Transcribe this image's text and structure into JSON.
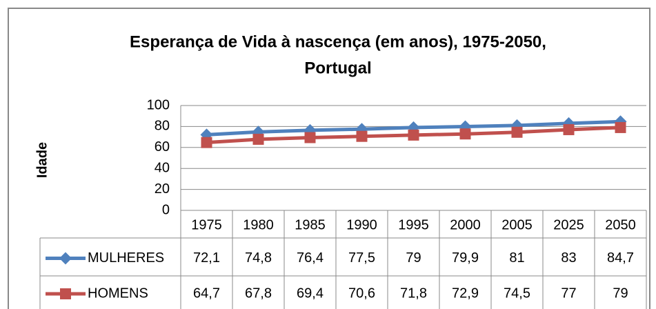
{
  "chart_data": {
    "type": "line",
    "title": [
      "Esperança de Vida à nascença (em anos), 1975-2050,",
      "Portugal"
    ],
    "y_label": "Idade",
    "categories": [
      "1975",
      "1980",
      "1985",
      "1990",
      "1995",
      "2000",
      "2005",
      "2025",
      "2050"
    ],
    "series": [
      {
        "name": "MULHERES",
        "color": "#4f81bd",
        "marker": "diamond",
        "values": [
          72.1,
          74.8,
          76.4,
          77.5,
          79,
          79.9,
          81,
          83,
          84.7
        ],
        "value_labels": [
          "72,1",
          "74,8",
          "76,4",
          "77,5",
          "79",
          "79,9",
          "81",
          "83",
          "84,7"
        ]
      },
      {
        "name": "HOMENS",
        "color": "#c0504d",
        "marker": "square",
        "values": [
          64.7,
          67.8,
          69.4,
          70.6,
          71.8,
          72.9,
          74.5,
          77,
          79
        ],
        "value_labels": [
          "64,7",
          "67,8",
          "69,4",
          "70,6",
          "71,8",
          "72,9",
          "74,5",
          "77",
          "79"
        ]
      }
    ],
    "ylim": [
      0,
      100
    ],
    "yticks": [
      0,
      20,
      40,
      60,
      80,
      100
    ],
    "grid": true
  }
}
